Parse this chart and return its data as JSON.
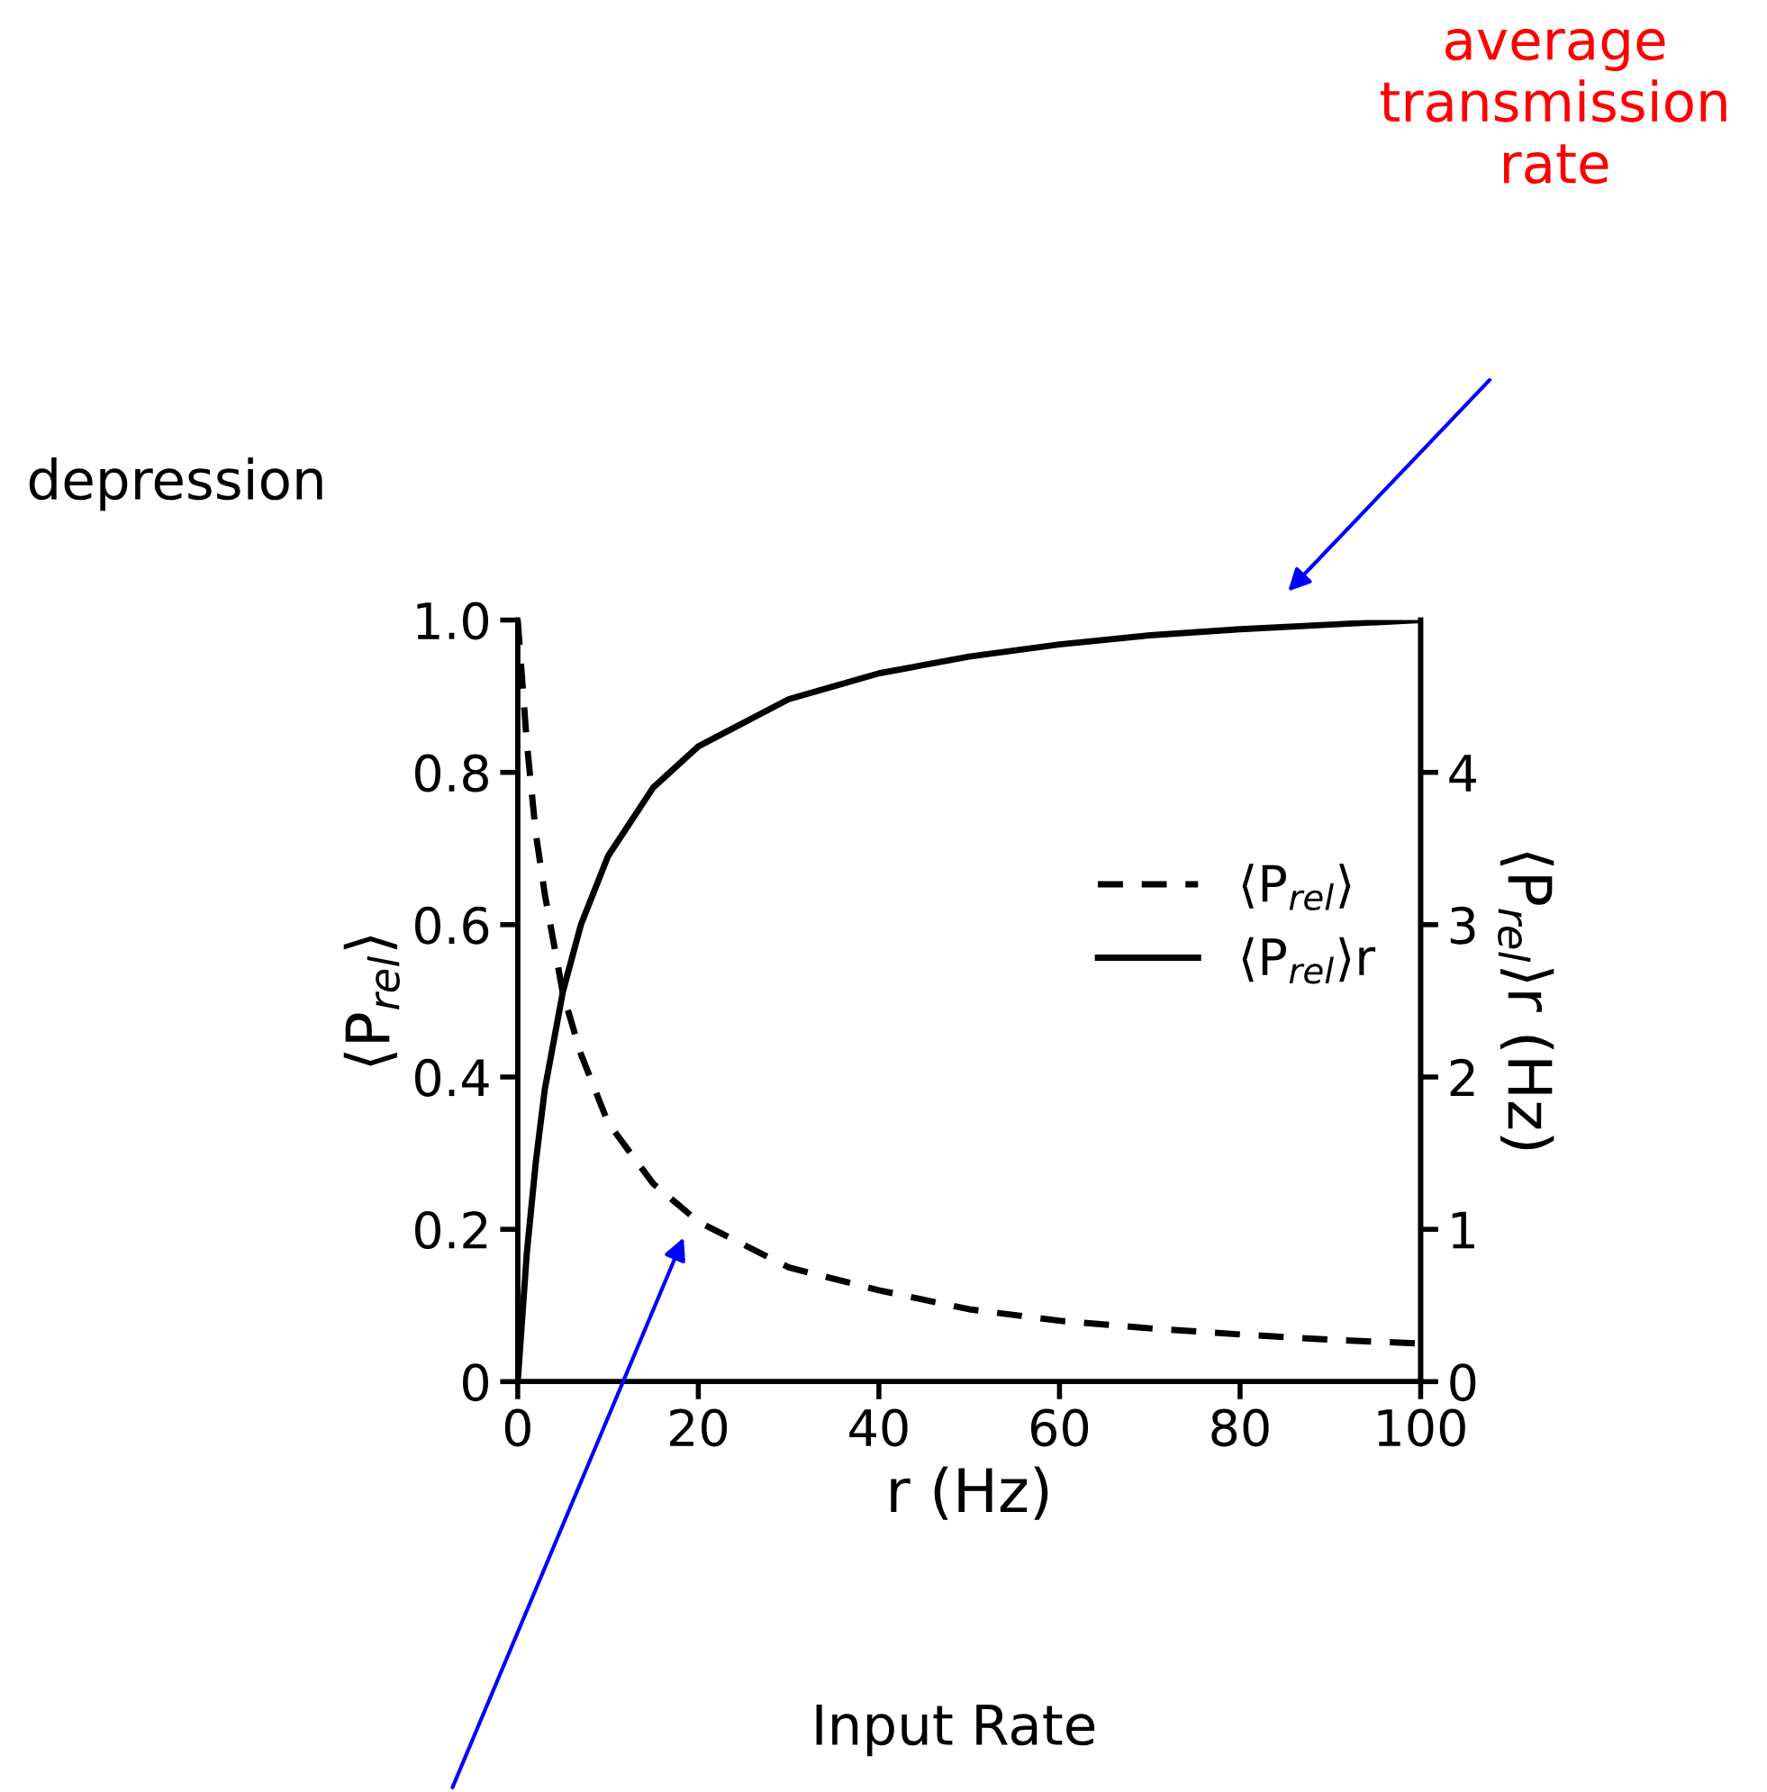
{
  "chart_data": {
    "type": "line",
    "x": [
      0,
      1,
      2,
      3,
      5,
      7,
      10,
      15,
      20,
      30,
      40,
      50,
      60,
      70,
      80,
      90,
      100
    ],
    "series": [
      {
        "name": "⟨P$_{rel}$⟩",
        "color": "#000000",
        "line_style": "dashed",
        "values": [
          1.0,
          0.84,
          0.72,
          0.64,
          0.51,
          0.43,
          0.34,
          0.26,
          0.21,
          0.15,
          0.12,
          0.095,
          0.08,
          0.07,
          0.062,
          0.055,
          0.05
        ]
      },
      {
        "name": "⟨P$_{rel}$⟩r",
        "color": "#000000",
        "line_style": "solid",
        "axis": "y2",
        "values": [
          0,
          0.84,
          1.44,
          1.92,
          2.56,
          3.0,
          3.45,
          3.9,
          4.17,
          4.48,
          4.65,
          4.76,
          4.84,
          4.9,
          4.94,
          4.97,
          5.0
        ]
      }
    ],
    "xlabel": "r (Hz)",
    "ylabel": "⟨P$_{rel}$⟩",
    "y2label": "⟨P$_{rel}$⟩r (Hz)",
    "xlim": [
      0,
      100
    ],
    "xticks": [
      0,
      20,
      40,
      60,
      80,
      100
    ],
    "ylim": [
      0,
      1.0
    ],
    "yticks": [
      0,
      0.2,
      0.4,
      0.6,
      0.8,
      {
        "value": 1.0,
        "label": "1.0"
      }
    ],
    "y2lim": [
      0,
      5
    ],
    "y2ticks": [
      0,
      1,
      2,
      3,
      4
    ],
    "legend": "center right",
    "grid": false,
    "annotations": [
      "average transmission rate",
      "depression",
      "Input Rate"
    ]
  }
}
